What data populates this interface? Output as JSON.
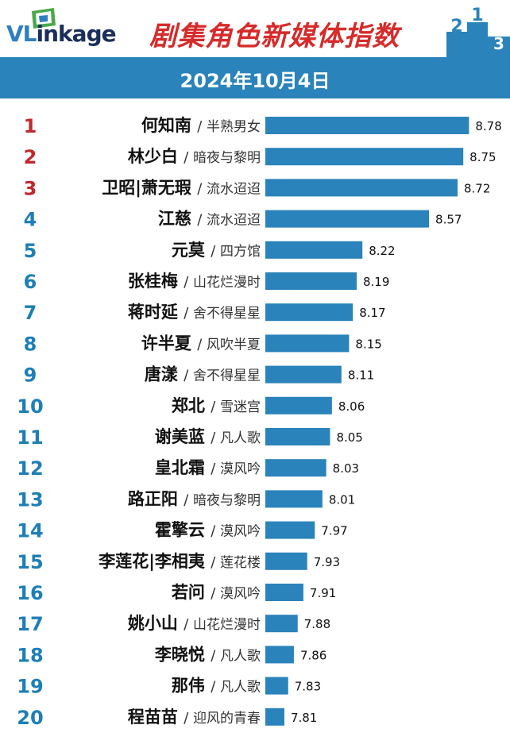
{
  "header": {
    "logo_text_vl": "VL",
    "logo_text_rest": "inkage",
    "title": "剧集角色新媒体指数",
    "podium": [
      "2",
      "1",
      "3"
    ]
  },
  "date": "2024年10月4日",
  "colors": {
    "bar": "#2a83bb",
    "band": "#2a83bb",
    "rank_top": "#c0282c",
    "rank_other": "#1d7fb6",
    "title": "#d62b2b"
  },
  "chart_data": {
    "type": "bar",
    "orientation": "horizontal",
    "title": "剧集角色新媒体指数",
    "subtitle": "2024年10月4日",
    "separator": "/",
    "items": [
      {
        "rank": "1",
        "name": "何知南",
        "show": "半熟男女",
        "value": 8.78
      },
      {
        "rank": "2",
        "name": "林少白",
        "show": "暗夜与黎明",
        "value": 8.75
      },
      {
        "rank": "3",
        "name": "卫昭|萧无瑕",
        "show": "流水迢迢",
        "value": 8.72
      },
      {
        "rank": "4",
        "name": "江慈",
        "show": "流水迢迢",
        "value": 8.57
      },
      {
        "rank": "5",
        "name": "元莫",
        "show": "四方馆",
        "value": 8.22
      },
      {
        "rank": "6",
        "name": "张桂梅",
        "show": "山花烂漫时",
        "value": 8.19
      },
      {
        "rank": "7",
        "name": "蒋时延",
        "show": "舍不得星星",
        "value": 8.17
      },
      {
        "rank": "8",
        "name": "许半夏",
        "show": "风吹半夏",
        "value": 8.15
      },
      {
        "rank": "9",
        "name": "唐漾",
        "show": "舍不得星星",
        "value": 8.11
      },
      {
        "rank": "10",
        "name": "郑北",
        "show": "雪迷宫",
        "value": 8.06
      },
      {
        "rank": "11",
        "name": "谢美蓝",
        "show": "凡人歌",
        "value": 8.05
      },
      {
        "rank": "12",
        "name": "皇北霜",
        "show": "漠风吟",
        "value": 8.03
      },
      {
        "rank": "13",
        "name": "路正阳",
        "show": "暗夜与黎明",
        "value": 8.01
      },
      {
        "rank": "14",
        "name": "霍擎云",
        "show": "漠风吟",
        "value": 7.97
      },
      {
        "rank": "15",
        "name": "李莲花|李相夷",
        "show": "莲花楼",
        "value": 7.93
      },
      {
        "rank": "16",
        "name": "若问",
        "show": "漠风吟",
        "value": 7.91
      },
      {
        "rank": "17",
        "name": "姚小山",
        "show": "山花烂漫时",
        "value": 7.88
      },
      {
        "rank": "18",
        "name": "李晓悦",
        "show": "凡人歌",
        "value": 7.86
      },
      {
        "rank": "19",
        "name": "那伟",
        "show": "凡人歌",
        "value": 7.83
      },
      {
        "rank": "20",
        "name": "程苗苗",
        "show": "迎风的青春",
        "value": 7.81
      }
    ]
  }
}
